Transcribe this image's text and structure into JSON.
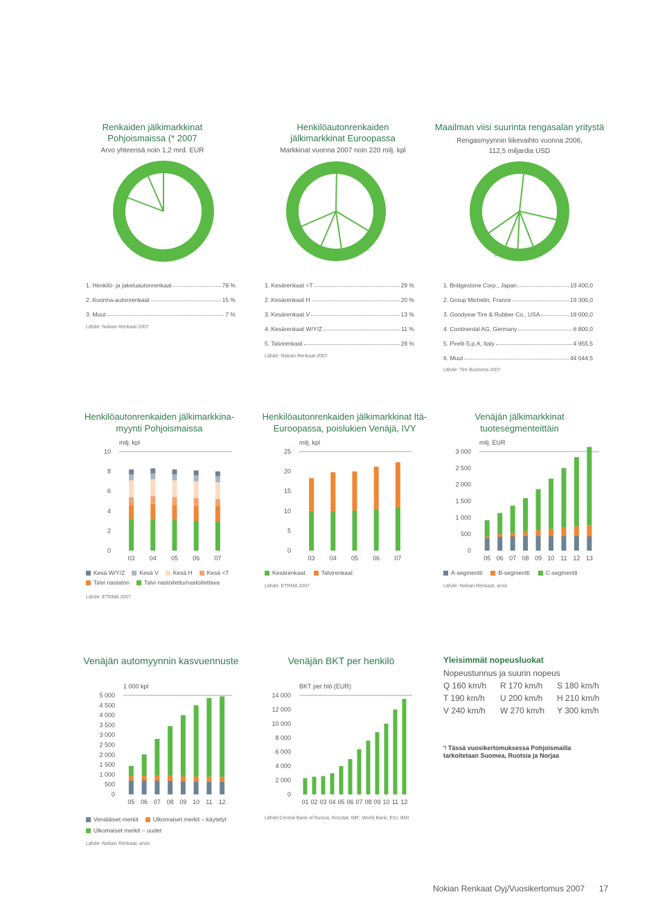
{
  "colors": {
    "green": "#5bb946",
    "orange": "#ef8734",
    "slate": "#6c8394",
    "lightslate": "#a8b7c2",
    "peach": "#f7c7a3",
    "lightpeach": "#fbdcc3",
    "salmon": "#f3a36b",
    "title_green": "#2d7a4a"
  },
  "pie1": {
    "title": "Renkaiden jälkimarkkinat Pohjoismaissa (* 2007",
    "subtitle": "Arvo yhteensä noin 1,2 mrd. EUR",
    "labels": [
      "1.",
      "2.",
      "3."
    ],
    "rows": [
      {
        "label": "1. Henkilö- ja jakeluautonrenkaat",
        "value": "78 %"
      },
      {
        "label": "2. Kuorma-autonrenkaat",
        "value": "15 %"
      },
      {
        "label": "3. Muut",
        "value": "7 %"
      }
    ],
    "source": "Lähde: Nokian Renkaat 2007"
  },
  "pie2": {
    "title": "Henkilöautonrenkaiden jälkimarkkinat Euroopassa",
    "subtitle": "Markkinat vuonna 2007 noin 220 milj. kpl",
    "labels": [
      "1.",
      "2.",
      "3.",
      "4.",
      "5."
    ],
    "rows": [
      {
        "label": "1. Kesärenkaat <T",
        "value": "29 %"
      },
      {
        "label": "2. Kesärenkaat H",
        "value": "20 %"
      },
      {
        "label": "3. Kesärenkaat V",
        "value": "13 %"
      },
      {
        "label": "4. Kesärenkaat W/Y/Z",
        "value": "11 %"
      },
      {
        "label": "5. Talvirenkaat",
        "value": "28 %"
      }
    ],
    "source": "Lähde: Nokian Renkaat 2007"
  },
  "pie3": {
    "title": "Maailman viisi suurinta rengasalan yritystä",
    "subtitle": "Rengasmyynnin liikevaihto vuonna 2006, 112,5 miljardia USD",
    "labels": [
      "1.",
      "2.",
      "3.",
      "4.",
      "5.",
      "6."
    ],
    "rows": [
      {
        "label": "1. Bridgestone Corp., Japan",
        "value": "19 400,0"
      },
      {
        "label": "2. Group Michelin, France",
        "value": "19 300,0"
      },
      {
        "label": "3. Goodyear Tire & Rubber Co., USA",
        "value": "18 000,0"
      },
      {
        "label": "4. Continental AG, Germany",
        "value": "6 800,0"
      },
      {
        "label": "5. Pirelli S.p.A, Italy",
        "value": "4 955,5"
      },
      {
        "label": "6. Muut",
        "value": "44 044,5"
      }
    ],
    "source": "Lähde: Tire Business 2007"
  },
  "chart_data": [
    {
      "type": "bar",
      "title": "Henkilöautonrenkaiden jälkimarkkina-myynti Pohjoismaissa",
      "unit": "milj. kpl",
      "categories": [
        "03",
        "04",
        "05",
        "06",
        "07"
      ],
      "yticks": [
        "0",
        "2",
        "4",
        "6",
        "8",
        "10"
      ],
      "ylim": [
        0,
        10
      ],
      "series": [
        {
          "name": "Talvi nastoitettu/nastoitettava",
          "values": [
            3.2,
            3.2,
            3.1,
            3.0,
            2.9
          ]
        },
        {
          "name": "Talvi nastaton",
          "values": [
            1.4,
            1.5,
            1.5,
            1.5,
            1.6
          ]
        },
        {
          "name": "Kesä <T",
          "values": [
            0.8,
            0.8,
            0.8,
            0.8,
            0.7
          ]
        },
        {
          "name": "Kesä H",
          "values": [
            1.7,
            1.7,
            1.7,
            1.7,
            1.7
          ]
        },
        {
          "name": "Kesä V",
          "values": [
            0.6,
            0.6,
            0.6,
            0.6,
            0.6
          ]
        },
        {
          "name": "Kesä W/Y/Z",
          "values": [
            0.5,
            0.5,
            0.5,
            0.5,
            0.5
          ]
        }
      ],
      "legend": [
        "Kesä W/Y/Z",
        "Kesä V",
        "Kesä H",
        "Kesä <T",
        "Talvi nastaton",
        "Talvi nastoitettu/nastoitettava"
      ],
      "source": "Lähde: ETRMA 2007"
    },
    {
      "type": "bar",
      "title": "Henkilöautonrenkaiden jälkimarkkinat Itä-Euroopassa, poislukien Venäjä, IVY",
      "unit": "milj. kpl",
      "categories": [
        "03",
        "04",
        "05",
        "06",
        "07"
      ],
      "yticks": [
        "0",
        "5",
        "10",
        "15",
        "20",
        "25"
      ],
      "ylim": [
        0,
        25
      ],
      "series": [
        {
          "name": "Talvirenkaat",
          "values": [
            10.0,
            10.0,
            10.1,
            10.3,
            11.0
          ]
        },
        {
          "name": "Kesärenkaat",
          "values": [
            8.3,
            9.8,
            9.9,
            10.9,
            11.3
          ]
        }
      ],
      "legend": [
        "Kesärenkaat",
        "Talvirenkaat"
      ],
      "source": "Lähde: ETRMA 2007"
    },
    {
      "type": "bar",
      "title": "Venäjän jälkimarkkinat tuotesegmenteittäin",
      "unit": "milj. EUR",
      "categories": [
        "05",
        "06",
        "07",
        "08",
        "09",
        "10",
        "11",
        "12",
        "13"
      ],
      "yticks": [
        "0",
        "500",
        "1 000",
        "1 500",
        "2 000",
        "2 500",
        "3 000"
      ],
      "ylim": [
        0,
        3000
      ],
      "series": [
        {
          "name": "A-segmentti",
          "values": [
            380,
            420,
            430,
            440,
            440,
            440,
            440,
            440,
            430
          ]
        },
        {
          "name": "B-segmentti",
          "values": [
            50,
            80,
            110,
            140,
            180,
            220,
            260,
            300,
            340
          ]
        },
        {
          "name": "C-segmentti",
          "values": [
            490,
            640,
            820,
            1010,
            1240,
            1520,
            1800,
            2090,
            2370
          ]
        }
      ],
      "legend": [
        "A-segmentti",
        "B-segmentti",
        "C-segmentti"
      ],
      "source": "Lähde: Nokian Renkaat, arvio"
    },
    {
      "type": "bar",
      "title": "Venäjän automyynnin kasvuennuste",
      "unit": "1 000 kpl",
      "categories": [
        "05",
        "06",
        "07",
        "08",
        "09",
        "10",
        "11",
        "12"
      ],
      "yticks": [
        "0",
        "500",
        "1 000",
        "1 500",
        "2 000",
        "2 500",
        "3 000",
        "3 500",
        "4 000",
        "4 500",
        "5 000"
      ],
      "ylim": [
        0,
        5000
      ],
      "series": [
        {
          "name": "Venäläiset merkit",
          "values": [
            700,
            700,
            700,
            680,
            660,
            650,
            640,
            630
          ]
        },
        {
          "name": "Ulkomaiset merkit – käytetyt",
          "values": [
            230,
            240,
            250,
            260,
            260,
            260,
            260,
            260
          ]
        },
        {
          "name": "Ulkomaiset merkit – uudet",
          "values": [
            510,
            1080,
            1850,
            2510,
            3080,
            3590,
            3970,
            4060
          ]
        }
      ],
      "legend": [
        "Venäläiset merkit",
        "Ulkomaiset merkit – käytetyt",
        "Ulkomaiset merkit – uudet"
      ],
      "source": "Lähde: Nokian Renkaat, arvio"
    },
    {
      "type": "bar",
      "title": "Venäjän BKT per henkilö",
      "unit": "BKT per hlö (EUR)",
      "categories": [
        "01",
        "02",
        "03",
        "04",
        "05",
        "06",
        "07",
        "08",
        "09",
        "10",
        "11",
        "12"
      ],
      "yticks": [
        "0",
        "2 000",
        "4 000",
        "6 000",
        "8 000",
        "10 000",
        "12 000",
        "14 000"
      ],
      "ylim": [
        0,
        14000
      ],
      "series": [
        {
          "name": "BKT per hlö",
          "values": [
            2300,
            2500,
            2600,
            3000,
            4000,
            5000,
            6400,
            7600,
            8800,
            10000,
            12000,
            13500
          ]
        }
      ],
      "source": "Lähde:Central Bank of Russia; Rosstat; IMF; World Bank; EIU, BMI"
    }
  ],
  "speed": {
    "title": "Yleisimmät nopeusluokat",
    "subtitle": "Nopeustunnus ja suurin nopeus",
    "rows": [
      [
        "Q 160 km/h",
        "R 170 km/h",
        "S 180 km/h"
      ],
      [
        "T 190 km/h",
        "U 200 km/h",
        "H 210 km/h"
      ],
      [
        "V 240 km/h",
        "W 270 km/h",
        "Y 300 km/h"
      ]
    ],
    "footnote_mark": "*)",
    "footnote": "Tässä vuosikertomuksessa Pohjoismailla tarkoitetaan Suomea, Ruotsia ja Norjaa"
  },
  "footer": {
    "text": "Nokian Renkaat Oyj/Vuosikertomus 2007",
    "page": "17"
  }
}
